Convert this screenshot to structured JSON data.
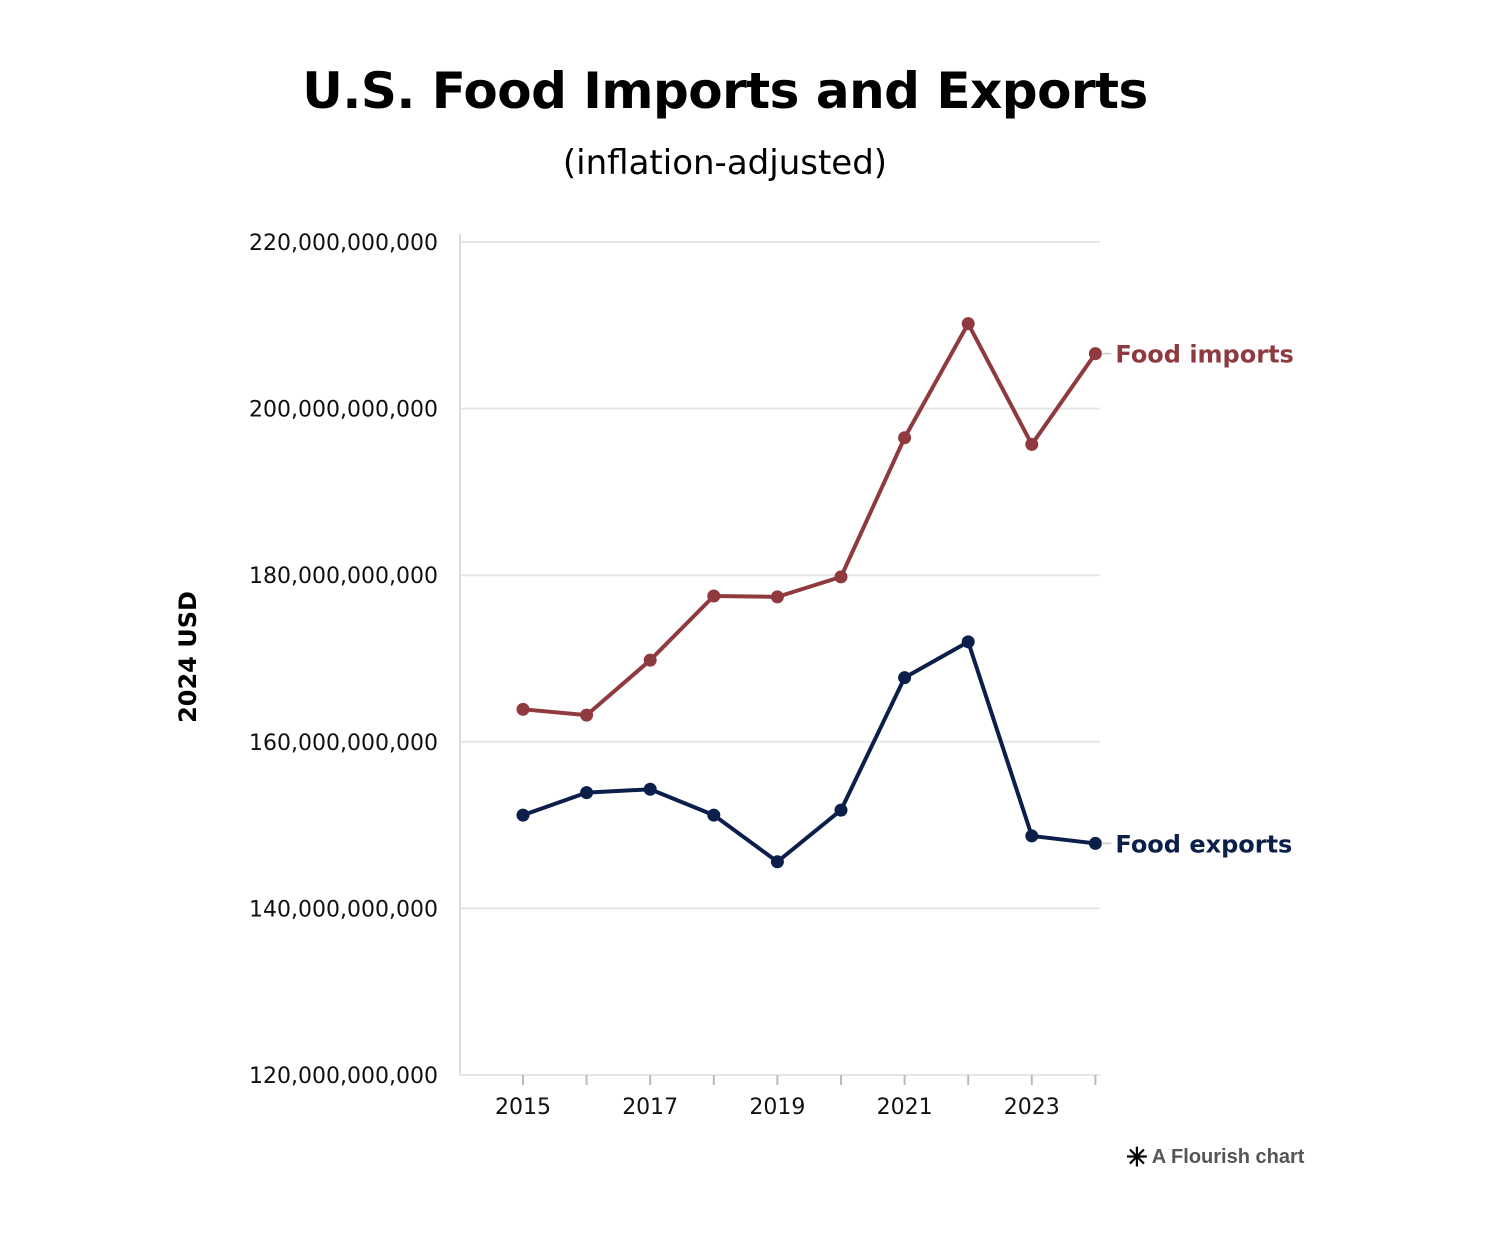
{
  "chart_data": {
    "type": "line",
    "title": "U.S. Food Imports and Exports",
    "subtitle": "(inflation-adjusted)",
    "xlabel": "",
    "ylabel": "2024 USD",
    "x": [
      2015,
      2016,
      2017,
      2018,
      2019,
      2020,
      2021,
      2022,
      2023,
      2024
    ],
    "x_tick_labels": [
      "2015",
      "2017",
      "2019",
      "2021",
      "2023"
    ],
    "ylim": [
      120000000000,
      220000000000
    ],
    "y_tick_labels": [
      "220,000,000,000",
      "200,000,000,000",
      "180,000,000,000",
      "160,000,000,000",
      "140,000,000,000",
      "120,000,000,000"
    ],
    "grid": true,
    "legend": "direct labels at line ends",
    "series": [
      {
        "name": "Food imports",
        "color": "#8e3a3f",
        "values": [
          163900000000,
          163200000000,
          169800000000,
          177500000000,
          177400000000,
          179800000000,
          196500000000,
          210200000000,
          195700000000,
          206600000000
        ]
      },
      {
        "name": "Food exports",
        "color": "#0b1f4a",
        "values": [
          151200000000,
          153900000000,
          154300000000,
          151200000000,
          145600000000,
          151800000000,
          167700000000,
          172000000000,
          148700000000,
          147800000000
        ]
      }
    ]
  },
  "credit": {
    "icon": "flourish-star-icon",
    "text": "A Flourish chart"
  }
}
